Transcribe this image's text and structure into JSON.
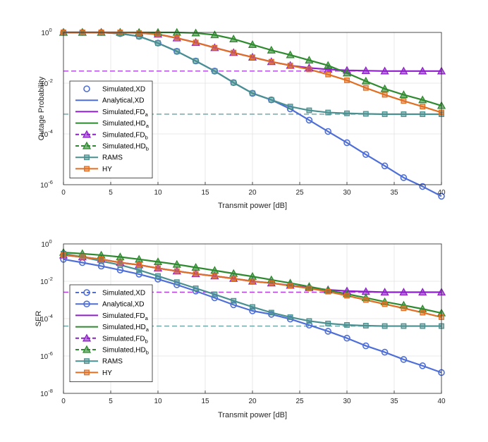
{
  "charts": [
    {
      "type": "line",
      "id": "outage",
      "xlabel": "Transmit power [dB]",
      "ylabel": "Outage Probability",
      "xlim": [
        0,
        40
      ],
      "ylog_exp": [
        -6,
        0
      ],
      "xticks": [
        "0",
        "5",
        "10",
        "15",
        "20",
        "25",
        "30",
        "35",
        "40"
      ],
      "yticks": [
        {
          "exp": "-6"
        },
        {
          "exp": "-4"
        },
        {
          "exp": "-2"
        },
        {
          "exp": "0"
        }
      ],
      "legend": [
        {
          "key": "s_xd",
          "label": "Simulated,XD",
          "sub": "",
          "color": "#4f6fd8",
          "marker": "circle",
          "line": "none"
        },
        {
          "key": "a_xd",
          "label": "Analytical,XD",
          "sub": "",
          "color": "#4f6fd8",
          "marker": "none",
          "line": "solid"
        },
        {
          "key": "s_fda",
          "label": "Simulated,FD",
          "sub": "a",
          "color": "#8f1fc9",
          "marker": "none",
          "line": "solid"
        },
        {
          "key": "s_hda",
          "label": "Simulated,HD",
          "sub": "a",
          "color": "#2e8a2e",
          "marker": "none",
          "line": "solid"
        },
        {
          "key": "s_fdb",
          "label": "Simulated,FD",
          "sub": "b",
          "color": "#8f1fc9",
          "marker": "triangle",
          "line": "dashed"
        },
        {
          "key": "s_hdb",
          "label": "Simulated,HD",
          "sub": "b",
          "color": "#2e8a2e",
          "marker": "triangle",
          "line": "dashed"
        },
        {
          "key": "rams",
          "label": "RAMS",
          "sub": "",
          "color": "#4a9090",
          "marker": "square",
          "line": "solid"
        },
        {
          "key": "hy",
          "label": "HY",
          "sub": "",
          "color": "#e06f23",
          "marker": "square",
          "line": "solid"
        }
      ],
      "x": [
        0,
        2,
        4,
        6,
        8,
        10,
        12,
        14,
        16,
        18,
        20,
        22,
        24,
        26,
        28,
        30,
        32,
        34,
        36,
        38,
        40
      ],
      "series": [
        {
          "name": "XD",
          "color": "#4f6fd8",
          "marker": "circle",
          "values": [
            1,
            1,
            1,
            0.9,
            0.7,
            0.38,
            0.18,
            0.075,
            0.03,
            0.0105,
            0.004,
            0.0022,
            0.00097,
            0.00035,
            0.000125,
            4.5e-05,
            1.55e-05,
            5.5e-06,
            1.9e-06,
            8.5e-07,
            3.5e-07
          ]
        },
        {
          "name": "FD",
          "color": "#8f1fc9",
          "marker": "triangle",
          "values": [
            1,
            1,
            1,
            1,
            0.95,
            0.85,
            0.6,
            0.4,
            0.25,
            0.16,
            0.105,
            0.07,
            0.05,
            0.04,
            0.035,
            0.032,
            0.031,
            0.03,
            0.03,
            0.03,
            0.03
          ]
        },
        {
          "name": "HD",
          "color": "#2e8a2e",
          "marker": "triangle",
          "values": [
            1,
            1,
            1,
            1,
            1,
            1,
            1,
            0.95,
            0.8,
            0.55,
            0.33,
            0.2,
            0.13,
            0.08,
            0.05,
            0.025,
            0.012,
            0.006,
            0.0035,
            0.0022,
            0.0013
          ]
        },
        {
          "name": "RAMS",
          "color": "#4a9090",
          "marker": "square",
          "values": [
            1,
            1,
            1,
            0.9,
            0.7,
            0.38,
            0.18,
            0.075,
            0.03,
            0.0105,
            0.004,
            0.0022,
            0.0012,
            0.00085,
            0.0007,
            0.00065,
            0.00062,
            0.0006,
            0.0006,
            0.0006,
            0.0006
          ]
        },
        {
          "name": "HY",
          "color": "#e06f23",
          "marker": "square",
          "values": [
            1,
            1,
            1,
            1,
            0.95,
            0.85,
            0.6,
            0.4,
            0.25,
            0.16,
            0.105,
            0.07,
            0.05,
            0.035,
            0.022,
            0.013,
            0.0065,
            0.0035,
            0.002,
            0.0012,
            0.0007
          ]
        }
      ],
      "hlines": [
        {
          "name": "FD floor",
          "color": "#b23ee0",
          "value": 0.03
        },
        {
          "name": "RAMS floor",
          "color": "#6aa0a0",
          "value": 0.0006
        }
      ]
    },
    {
      "type": "line",
      "id": "ser",
      "xlabel": "Transmit power [dB]",
      "ylabel": "SER",
      "xlim": [
        0,
        40
      ],
      "ylog_exp": [
        -8,
        0
      ],
      "xticks": [
        "0",
        "5",
        "10",
        "15",
        "20",
        "25",
        "30",
        "35",
        "40"
      ],
      "yticks": [
        {
          "exp": "-8"
        },
        {
          "exp": "-6"
        },
        {
          "exp": "-4"
        },
        {
          "exp": "-2"
        },
        {
          "exp": "0"
        }
      ],
      "legend": [
        {
          "key": "s_xd",
          "label": "Simulated,XD",
          "sub": "",
          "color": "#4f6fd8",
          "marker": "circle",
          "line": "dashed"
        },
        {
          "key": "a_xd",
          "label": "Analytical,XD",
          "sub": "",
          "color": "#4f6fd8",
          "marker": "circle",
          "line": "solid"
        },
        {
          "key": "s_fda",
          "label": "Simulated,FD",
          "sub": "a",
          "color": "#8f1fc9",
          "marker": "none",
          "line": "solid"
        },
        {
          "key": "s_hda",
          "label": "Simulated,HD",
          "sub": "a",
          "color": "#2e8a2e",
          "marker": "none",
          "line": "solid"
        },
        {
          "key": "s_fdb",
          "label": "Simulated,FD",
          "sub": "b",
          "color": "#8f1fc9",
          "marker": "triangle",
          "line": "dashed"
        },
        {
          "key": "s_hdb",
          "label": "Simulated,HD",
          "sub": "b",
          "color": "#2e8a2e",
          "marker": "triangle",
          "line": "dashed"
        },
        {
          "key": "rams",
          "label": "RAMS",
          "sub": "",
          "color": "#4a9090",
          "marker": "square",
          "line": "solid"
        },
        {
          "key": "hy",
          "label": "HY",
          "sub": "",
          "color": "#e06f23",
          "marker": "square",
          "line": "solid"
        }
      ],
      "x": [
        0,
        2,
        4,
        6,
        8,
        10,
        12,
        14,
        16,
        18,
        20,
        22,
        24,
        26,
        28,
        30,
        32,
        34,
        36,
        38,
        40
      ],
      "series": [
        {
          "name": "XD",
          "color": "#4f6fd8",
          "marker": "circle",
          "values": [
            0.15,
            0.1,
            0.065,
            0.04,
            0.024,
            0.013,
            0.0065,
            0.003,
            0.0013,
            0.00055,
            0.00026,
            0.00017,
            9.5e-05,
            4.5e-05,
            2.1e-05,
            9e-06,
            3.5e-06,
            1.6e-06,
            6.5e-07,
            3e-07,
            1.3e-07
          ]
        },
        {
          "name": "FD",
          "color": "#8f1fc9",
          "marker": "triangle",
          "values": [
            0.25,
            0.2,
            0.15,
            0.1,
            0.075,
            0.05,
            0.035,
            0.025,
            0.019,
            0.014,
            0.01,
            0.008,
            0.006,
            0.0045,
            0.0035,
            0.003,
            0.0028,
            0.0026,
            0.0026,
            0.0026,
            0.0026
          ]
        },
        {
          "name": "HD",
          "color": "#2e8a2e",
          "marker": "triangle",
          "values": [
            0.35,
            0.3,
            0.25,
            0.2,
            0.15,
            0.11,
            0.08,
            0.055,
            0.038,
            0.026,
            0.018,
            0.012,
            0.008,
            0.0052,
            0.0033,
            0.0021,
            0.0013,
            0.0008,
            0.00052,
            0.00033,
            0.0002
          ]
        },
        {
          "name": "RAMS",
          "color": "#4a9090",
          "marker": "square",
          "values": [
            0.3,
            0.2,
            0.12,
            0.075,
            0.04,
            0.019,
            0.009,
            0.0042,
            0.002,
            0.0009,
            0.00042,
            0.00021,
            0.00012,
            7.5e-05,
            5.5e-05,
            4.6e-05,
            4.2e-05,
            4e-05,
            4e-05,
            4e-05,
            4e-05
          ]
        },
        {
          "name": "HY",
          "color": "#e06f23",
          "marker": "square",
          "values": [
            0.25,
            0.2,
            0.15,
            0.1,
            0.075,
            0.05,
            0.035,
            0.025,
            0.019,
            0.014,
            0.01,
            0.008,
            0.0058,
            0.0042,
            0.0028,
            0.0017,
            0.001,
            0.0006,
            0.00036,
            0.00021,
            0.00012
          ]
        }
      ],
      "hlines": [
        {
          "name": "FD floor",
          "color": "#b23ee0",
          "value": 0.0026
        },
        {
          "name": "RAMS floor",
          "color": "#6aa0a0",
          "value": 4e-05
        }
      ]
    }
  ]
}
